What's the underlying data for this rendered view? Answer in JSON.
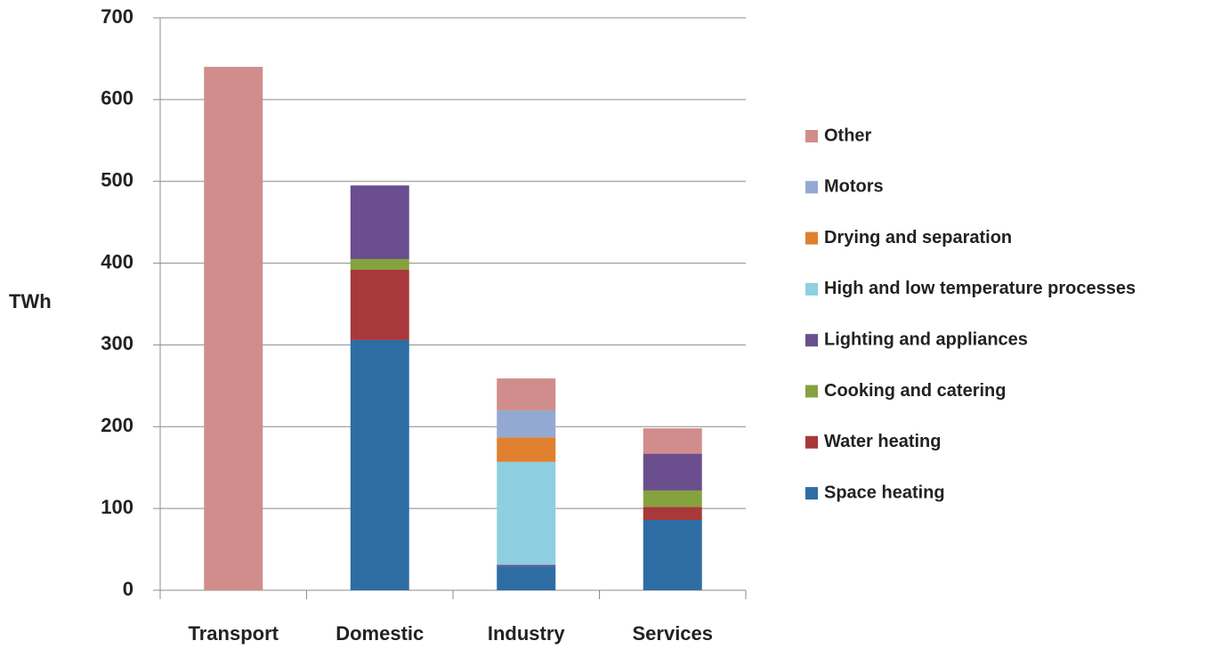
{
  "chart_data": {
    "type": "stacked_bar",
    "y_label": "TWh",
    "categories": [
      "Transport",
      "Domestic",
      "Industry",
      "Services"
    ],
    "series": [
      {
        "name": "Space heating",
        "color": "#2e6da4",
        "values": [
          null,
          306,
          29,
          86
        ]
      },
      {
        "name": "Water heating",
        "color": "#a8383a",
        "values": [
          null,
          86,
          null,
          16
        ]
      },
      {
        "name": "Cooking and catering",
        "color": "#86a23e",
        "values": [
          null,
          13,
          null,
          20
        ]
      },
      {
        "name": "Lighting and appliances",
        "color": "#6b4e8e",
        "values": [
          null,
          90,
          2,
          45
        ]
      },
      {
        "name": "High and low temperature processes",
        "color": "#8ecfe0",
        "values": [
          null,
          null,
          126,
          null
        ]
      },
      {
        "name": "Drying and separation",
        "color": "#e0802f",
        "values": [
          null,
          null,
          30,
          null
        ]
      },
      {
        "name": "Motors",
        "color": "#93a9d2",
        "values": [
          null,
          null,
          33,
          null
        ]
      },
      {
        "name": "Other",
        "color": "#d08d8c",
        "values": [
          640,
          null,
          39,
          31
        ]
      }
    ],
    "ylim": [
      0,
      700
    ],
    "yticks": [
      0,
      100,
      200,
      300,
      400,
      500,
      600,
      700
    ],
    "grid": true
  }
}
